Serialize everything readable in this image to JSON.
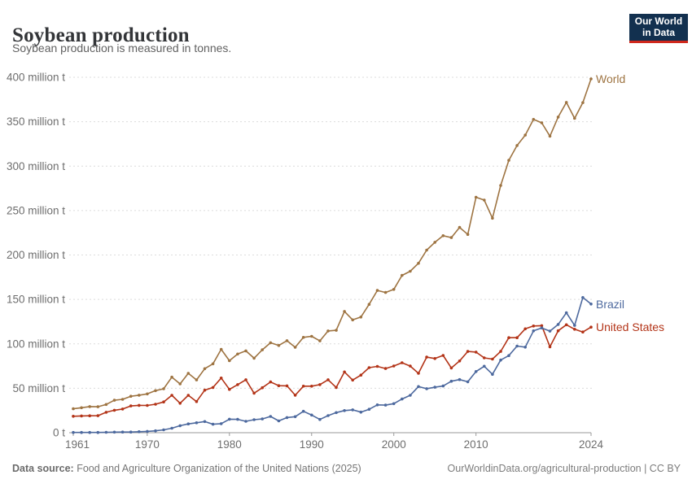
{
  "header": {
    "title": "Soybean production",
    "subtitle": "Soybean production is measured in tonnes."
  },
  "logo": {
    "line1": "Our World",
    "line2": "in Data",
    "bg_color": "#12304f",
    "accent_color": "#d0281c"
  },
  "footer": {
    "source_label": "Data source:",
    "source_text": " Food and Agriculture Organization of the United Nations (2025)",
    "link_text": "OurWorldinData.org/agricultural-production | CC BY"
  },
  "chart_data": {
    "type": "line",
    "title": "Soybean production",
    "unit": "tonnes",
    "grid": "dashed-horizontal",
    "legend_position": "labels-at-line-end",
    "ylim": [
      0,
      400
    ],
    "xlim": [
      1961,
      2024
    ],
    "y_ticks": [
      0,
      50,
      100,
      150,
      200,
      250,
      300,
      350,
      400
    ],
    "y_tick_labels": [
      "0 t",
      "50 million t",
      "100 million t",
      "150 million t",
      "200 million t",
      "250 million t",
      "300 million t",
      "350 million t",
      "400 million t"
    ],
    "x_ticks": [
      1961,
      1970,
      1980,
      1990,
      2000,
      2010,
      2024
    ],
    "x_tick_labels": [
      "1961",
      "1970",
      "1980",
      "1990",
      "2000",
      "2010",
      "2024"
    ],
    "x": [
      1961,
      1962,
      1963,
      1964,
      1965,
      1966,
      1967,
      1968,
      1969,
      1970,
      1971,
      1972,
      1973,
      1974,
      1975,
      1976,
      1977,
      1978,
      1979,
      1980,
      1981,
      1982,
      1983,
      1984,
      1985,
      1986,
      1987,
      1988,
      1989,
      1990,
      1991,
      1992,
      1993,
      1994,
      1995,
      1996,
      1997,
      1998,
      1999,
      2000,
      2001,
      2002,
      2003,
      2004,
      2005,
      2006,
      2007,
      2008,
      2009,
      2010,
      2011,
      2012,
      2013,
      2014,
      2015,
      2016,
      2017,
      2018,
      2019,
      2020,
      2021,
      2022,
      2023,
      2024
    ],
    "series": [
      {
        "name": "World",
        "color": "#9e7442",
        "values": [
          26.9,
          28.1,
          29.4,
          29.2,
          31.8,
          36.5,
          37.5,
          41.0,
          42.2,
          43.7,
          47.3,
          49.4,
          62.5,
          54.9,
          66.8,
          59.4,
          72.0,
          77.5,
          93.8,
          81.0,
          88.5,
          92.1,
          83.8,
          93.3,
          101.2,
          98.2,
          103.5,
          96.1,
          107.3,
          108.5,
          103.3,
          114.5,
          115.2,
          136.5,
          127.0,
          130.2,
          144.4,
          160.1,
          157.8,
          161.3,
          177.0,
          181.7,
          190.7,
          205.5,
          214.3,
          221.7,
          219.6,
          231.0,
          223.2,
          265.0,
          261.8,
          241.4,
          278.3,
          306.5,
          323.2,
          334.9,
          352.6,
          348.7,
          333.7,
          355.2,
          371.7,
          353.8,
          371.4,
          398.2
        ]
      },
      {
        "name": "United States",
        "color": "#b33418",
        "values": [
          18.5,
          18.9,
          19.0,
          19.1,
          23.0,
          25.3,
          26.6,
          30.1,
          30.8,
          30.7,
          32.0,
          34.6,
          42.1,
          33.1,
          42.1,
          35.1,
          47.9,
          50.9,
          61.5,
          48.8,
          54.1,
          59.6,
          44.5,
          50.6,
          57.1,
          52.9,
          52.7,
          42.2,
          52.4,
          52.4,
          54.1,
          59.6,
          50.9,
          68.4,
          59.2,
          64.8,
          73.2,
          74.6,
          72.2,
          75.1,
          78.7,
          75.0,
          66.8,
          85.0,
          83.5,
          87.0,
          72.9,
          80.7,
          91.4,
          90.7,
          84.2,
          82.8,
          91.4,
          106.9,
          106.9,
          116.9,
          120.1,
          120.5,
          96.7,
          114.7,
          121.5,
          116.4,
          113.3,
          118.8
        ]
      },
      {
        "name": "Brazil",
        "color": "#4d699e",
        "values": [
          0.3,
          0.3,
          0.3,
          0.3,
          0.5,
          0.6,
          0.7,
          0.7,
          1.1,
          1.5,
          2.1,
          3.2,
          5.0,
          7.9,
          9.9,
          11.2,
          12.5,
          9.5,
          10.2,
          15.2,
          15.0,
          12.8,
          14.6,
          15.5,
          18.3,
          13.3,
          17.0,
          18.0,
          24.1,
          19.9,
          14.9,
          19.2,
          22.6,
          24.9,
          25.7,
          23.2,
          26.4,
          31.3,
          31.0,
          32.7,
          37.9,
          42.1,
          51.9,
          49.5,
          51.2,
          52.5,
          57.9,
          59.8,
          57.3,
          68.8,
          74.8,
          65.7,
          81.7,
          86.8,
          97.5,
          96.3,
          114.6,
          117.9,
          114.3,
          121.8,
          134.9,
          120.7,
          152.1,
          144.8
        ]
      }
    ]
  }
}
